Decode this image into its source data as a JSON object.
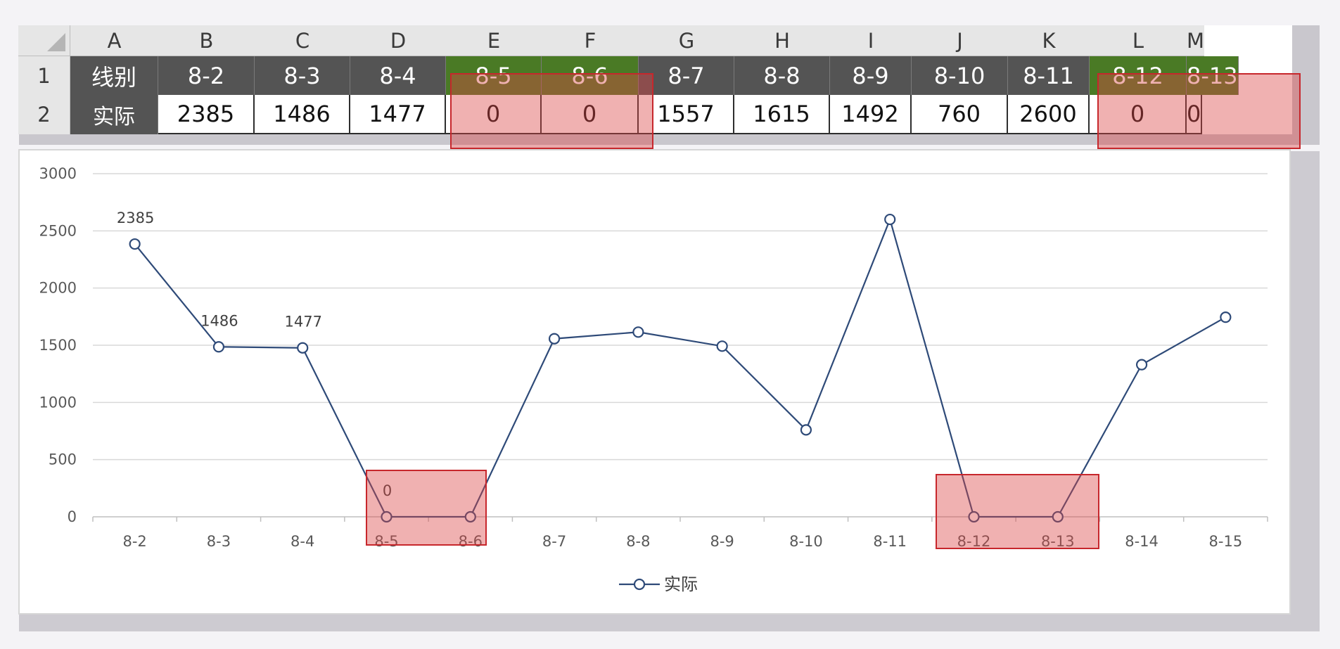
{
  "sheet": {
    "columns": [
      "A",
      "B",
      "C",
      "D",
      "E",
      "F",
      "G",
      "H",
      "I",
      "J",
      "K",
      "L",
      "M"
    ],
    "row_numbers": [
      "1",
      "2"
    ],
    "row1": [
      "线别",
      "8-2",
      "8-3",
      "8-4",
      "8-5",
      "8-6",
      "8-7",
      "8-8",
      "8-9",
      "8-10",
      "8-11",
      "8-12",
      "8-13"
    ],
    "row2": [
      "实际",
      "2385",
      "1486",
      "1477",
      "0",
      "0",
      "1557",
      "1615",
      "1492",
      "760",
      "2600",
      "0",
      "0"
    ],
    "colors": {
      "header_dark": "#545454",
      "header_green": "#4a7a25",
      "highlight": "#e05050"
    }
  },
  "chart_data": {
    "type": "line",
    "categories": [
      "8-2",
      "8-3",
      "8-4",
      "8-5",
      "8-6",
      "8-7",
      "8-8",
      "8-9",
      "8-10",
      "8-11",
      "8-12",
      "8-13",
      "8-14",
      "8-15"
    ],
    "series": [
      {
        "name": "实际",
        "values": [
          2385,
          1486,
          1477,
          0,
          0,
          1557,
          1615,
          1492,
          760,
          2600,
          0,
          0,
          1330,
          1745
        ],
        "color": "#2e4a78"
      }
    ],
    "data_labels": [
      {
        "index": 0,
        "text": "2385"
      },
      {
        "index": 1,
        "text": "1486"
      },
      {
        "index": 2,
        "text": "1477"
      },
      {
        "index": 3,
        "text": "0"
      }
    ],
    "ylim": [
      0,
      3000
    ],
    "yticks": [
      0,
      500,
      1000,
      1500,
      2000,
      2500,
      3000
    ],
    "grid": true,
    "legend": "bottom",
    "highlighted_categories": [
      "8-5",
      "8-6",
      "8-12",
      "8-13"
    ]
  }
}
